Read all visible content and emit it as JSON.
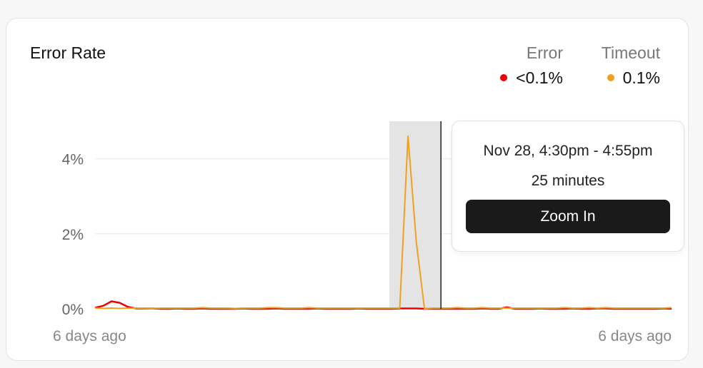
{
  "chart_data": {
    "type": "line",
    "title": "Error Rate",
    "ylim": [
      0,
      5
    ],
    "yticks": [
      "0%",
      "2%",
      "4%"
    ],
    "ytick_values": [
      0,
      2,
      4
    ],
    "xticks": [
      "6 days ago",
      "6 days ago"
    ],
    "grid": true,
    "legend_placement": "top-right",
    "series": [
      {
        "name": "Error",
        "summary": "<0.1%",
        "color": "#ee0000",
        "values": [
          0.03,
          0.08,
          0.2,
          0.16,
          0.05,
          0.01,
          0.01,
          0.01,
          0.0,
          0.0,
          0.01,
          0.0,
          0.0,
          0.01,
          0.0,
          0.0,
          0.0,
          0.0,
          0.01,
          0.0,
          0.0,
          0.0,
          0.01,
          0.0,
          0.0,
          0.0,
          0.0,
          0.01,
          0.0,
          0.0,
          0.0,
          0.0,
          0.01,
          0.0,
          0.0,
          0.0,
          0.0,
          0.01,
          0.01,
          0.01,
          0.0,
          0.0,
          0.0,
          0.0,
          0.0,
          0.0,
          0.0,
          0.01,
          0.0,
          0.0,
          0.04,
          0.0,
          0.0,
          0.0,
          0.01,
          0.0,
          0.0,
          0.0,
          0.01,
          0.0,
          0.0,
          0.01,
          0.01,
          0.0,
          0.0,
          0.0,
          0.0,
          0.0,
          0.0,
          0.01,
          0.0
        ]
      },
      {
        "name": "Timeout",
        "summary": "0.1%",
        "color": "#f0a020",
        "values": [
          0.02,
          0.01,
          0.02,
          0.01,
          0.02,
          0.02,
          0.02,
          0.01,
          0.02,
          0.02,
          0.02,
          0.02,
          0.02,
          0.03,
          0.02,
          0.02,
          0.02,
          0.01,
          0.02,
          0.02,
          0.02,
          0.03,
          0.03,
          0.02,
          0.02,
          0.02,
          0.03,
          0.02,
          0.02,
          0.02,
          0.02,
          0.02,
          0.02,
          0.02,
          0.02,
          0.02,
          0.02,
          0.02,
          4.6,
          1.8,
          0.0,
          0.02,
          0.02,
          0.02,
          0.03,
          0.02,
          0.02,
          0.03,
          0.02,
          0.02,
          0.02,
          0.02,
          0.02,
          0.02,
          0.02,
          0.02,
          0.02,
          0.03,
          0.02,
          0.02,
          0.03,
          0.02,
          0.03,
          0.02,
          0.02,
          0.02,
          0.02,
          0.02,
          0.02,
          0.02,
          0.03
        ]
      }
    ],
    "selection": {
      "start_index": 36,
      "end_index": 42
    }
  },
  "tooltip": {
    "range": "Nov 28, 4:30pm - 4:55pm",
    "duration": "25 minutes",
    "zoom_label": "Zoom In"
  }
}
